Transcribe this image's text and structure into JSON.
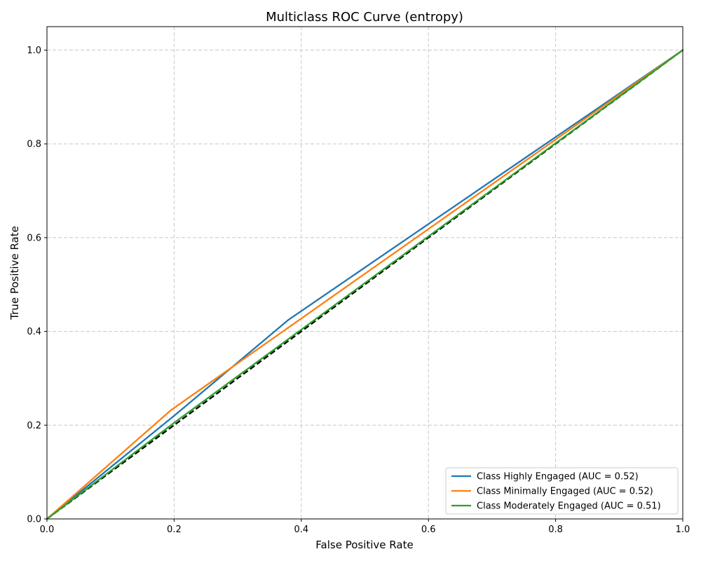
{
  "chart_data": {
    "type": "line",
    "title": "Multiclass ROC Curve (entropy)",
    "xlabel": "False Positive Rate",
    "ylabel": "True Positive Rate",
    "xlim": [
      0.0,
      1.0
    ],
    "ylim": [
      0.0,
      1.05
    ],
    "xticks": [
      "0.0",
      "0.2",
      "0.4",
      "0.6",
      "0.8",
      "1.0"
    ],
    "yticks": [
      "0.0",
      "0.2",
      "0.4",
      "0.6",
      "0.8",
      "1.0"
    ],
    "grid": true,
    "legend_position": "lower-right",
    "series": [
      {
        "name": "Class Highly Engaged (AUC = 0.52)",
        "color": "#1f77b4",
        "x": [
          0.0,
          0.2,
          0.38,
          1.0
        ],
        "y": [
          0.0,
          0.22,
          0.425,
          1.0
        ]
      },
      {
        "name": "Class Minimally Engaged (AUC = 0.52)",
        "color": "#ff7f0e",
        "x": [
          0.0,
          0.195,
          1.0
        ],
        "y": [
          0.0,
          0.232,
          1.0
        ]
      },
      {
        "name": "Class Moderately Engaged (AUC = 0.51)",
        "color": "#2ca02c",
        "x": [
          0.0,
          0.2,
          1.0
        ],
        "y": [
          0.0,
          0.205,
          1.0
        ]
      }
    ],
    "reference_line": {
      "color": "#000000",
      "style": "dashed",
      "x": [
        0.0,
        1.0
      ],
      "y": [
        0.0,
        1.0
      ]
    }
  }
}
